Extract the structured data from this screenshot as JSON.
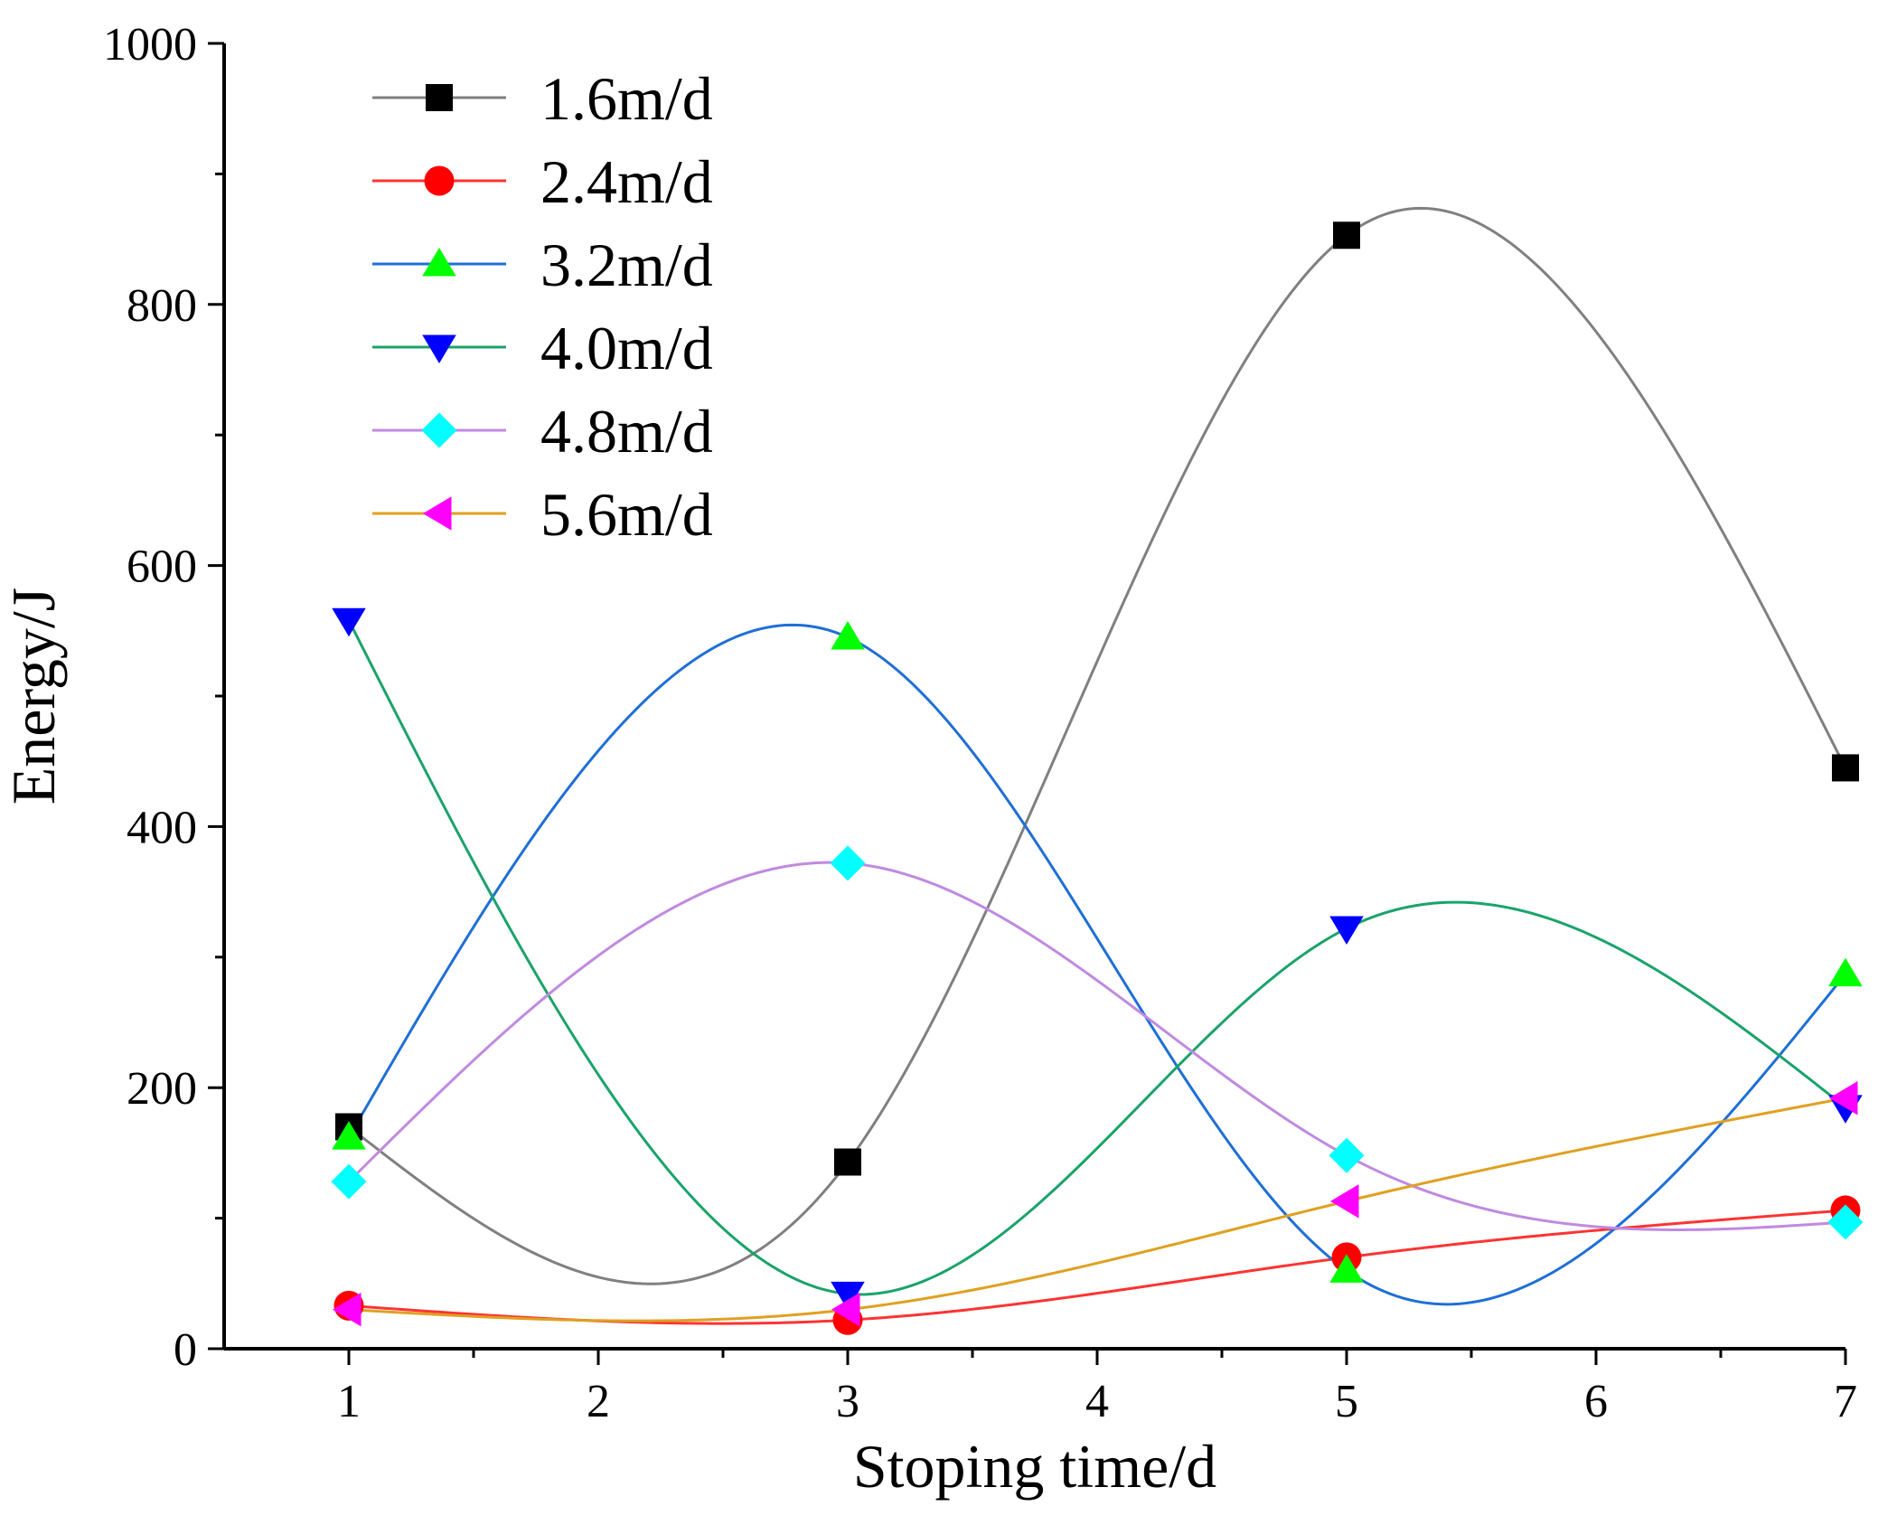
{
  "chart_data": {
    "type": "line",
    "title": "",
    "xlabel": "Stoping time/d",
    "ylabel": "Energy/J",
    "xlim": [
      0.5,
      7
    ],
    "ylim": [
      0,
      1000
    ],
    "x_ticks": [
      1,
      2,
      3,
      4,
      5,
      6,
      7
    ],
    "x_tick_labels": [
      "1",
      "2",
      "3",
      "4",
      "5",
      "6",
      "7"
    ],
    "y_ticks": [
      0,
      200,
      400,
      600,
      800,
      1000
    ],
    "y_tick_labels": [
      "0",
      "200",
      "400",
      "600",
      "800",
      "1000"
    ],
    "grid": false,
    "legend_position": "top-left",
    "x": [
      1,
      3,
      5,
      7
    ],
    "series": [
      {
        "name": "1.6m/d",
        "values": [
          170,
          143,
          853,
          445
        ],
        "color": "#808080",
        "marker_color": "#000000",
        "marker": "square"
      },
      {
        "name": "2.4m/d",
        "values": [
          33,
          22,
          70,
          106
        ],
        "color": "#ff3333",
        "marker_color": "#ff0000",
        "marker": "circle"
      },
      {
        "name": "3.2m/d",
        "values": [
          162,
          545,
          60,
          287
        ],
        "color": "#1f6fd6",
        "marker_color": "#00ff00",
        "marker": "triangle-up"
      },
      {
        "name": "4.0m/d",
        "values": [
          558,
          42,
          322,
          185
        ],
        "color": "#1aa36b",
        "marker_color": "#0000ff",
        "marker": "triangle-down"
      },
      {
        "name": "4.8m/d",
        "values": [
          128,
          372,
          148,
          97
        ],
        "color": "#c08ae0",
        "marker_color": "#00ffff",
        "marker": "diamond"
      },
      {
        "name": "5.6m/d",
        "values": [
          30,
          30,
          113,
          192
        ],
        "color": "#e0a020",
        "marker_color": "#ff00ff",
        "marker": "triangle-left"
      }
    ]
  }
}
